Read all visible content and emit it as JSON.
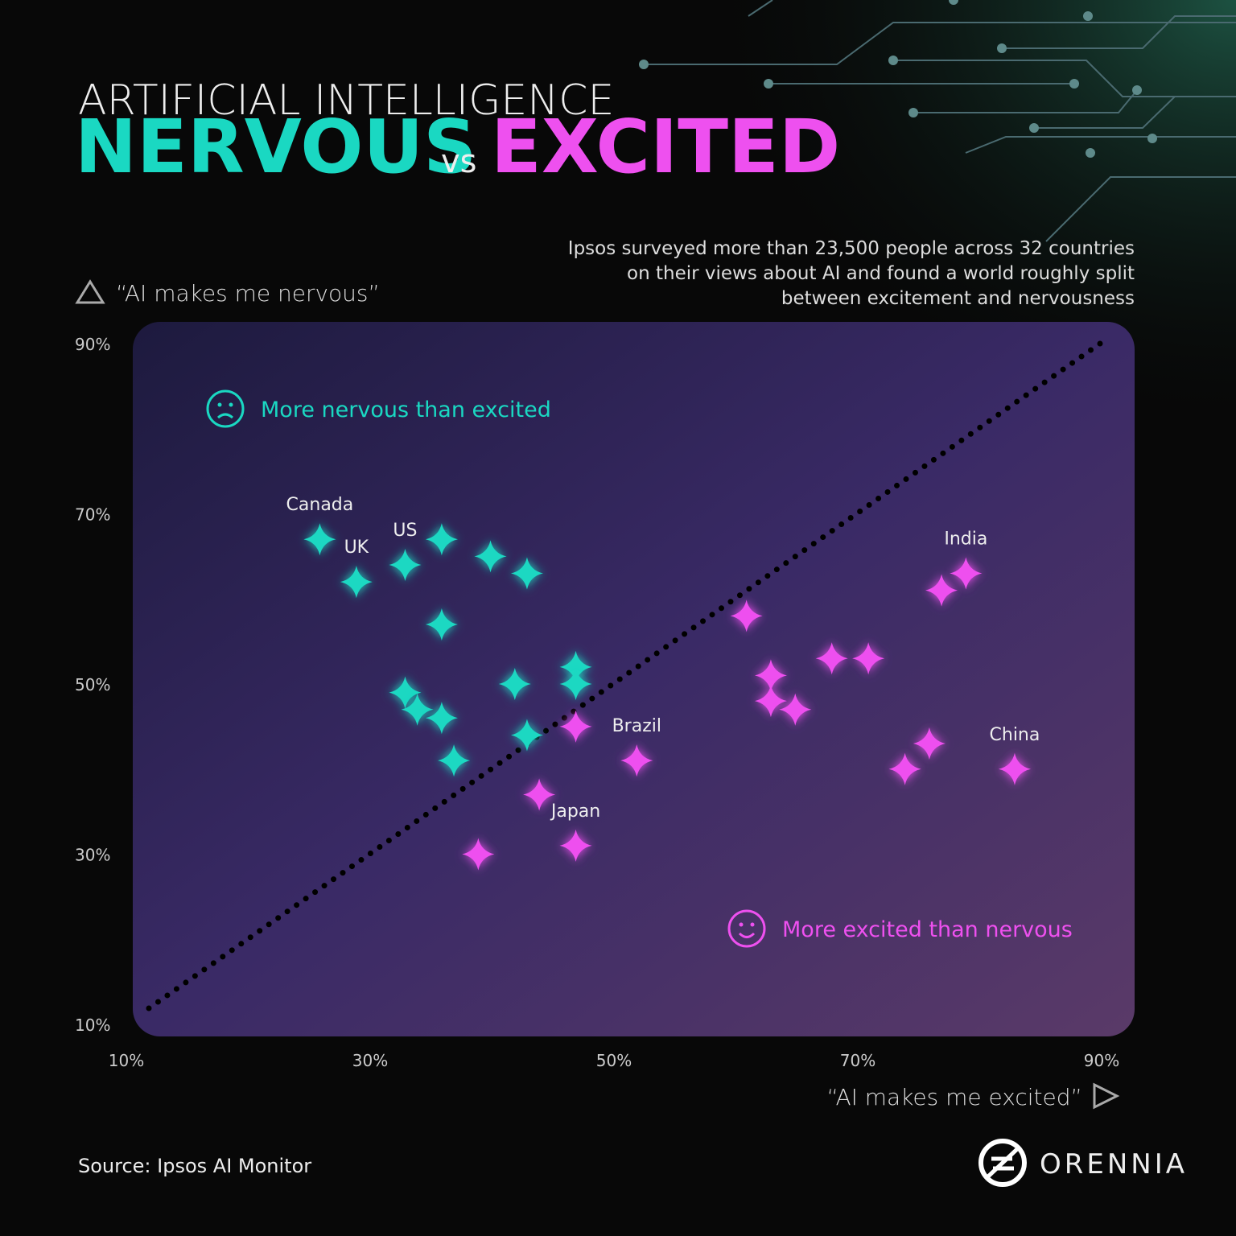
{
  "chart_data": {
    "type": "scatter",
    "title": "ARTIFICIAL INTELLIGENCE",
    "headline": [
      "NERVOUS",
      "vs",
      "EXCITED"
    ],
    "subtitle": "Ipsos surveyed more than 23,500 people across 32 countries on their views about AI and found a world roughly split between excitement and nervousness",
    "x_label": "“AI makes me excited”",
    "y_label": "“AI makes me nervous”",
    "xlim": [
      10,
      90
    ],
    "ylim": [
      10,
      90
    ],
    "xticks": [
      {
        "value": 10,
        "label": "10%"
      },
      {
        "value": 30,
        "label": "30%"
      },
      {
        "value": 50,
        "label": "50%"
      },
      {
        "value": 70,
        "label": "70%"
      },
      {
        "value": 90,
        "label": "90%"
      }
    ],
    "yticks": [
      {
        "value": 10,
        "label": "10%"
      },
      {
        "value": 30,
        "label": "30%"
      },
      {
        "value": 50,
        "label": "50%"
      },
      {
        "value": 70,
        "label": "70%"
      },
      {
        "value": 90,
        "label": "90%"
      }
    ],
    "series": [
      {
        "name": "More nervous than excited",
        "color": "#1ad8c2",
        "x": [
          26,
          29,
          33,
          36,
          40,
          43,
          36,
          33,
          34,
          36,
          37,
          42,
          43,
          47,
          47
        ],
        "values": [
          67,
          62,
          64,
          67,
          65,
          63,
          57,
          49,
          47,
          46,
          41,
          50,
          44,
          52,
          50
        ],
        "point_labels": [
          "Canada",
          "UK",
          "US",
          null,
          null,
          null,
          null,
          null,
          null,
          null,
          null,
          null,
          null,
          null,
          null
        ]
      },
      {
        "name": "More excited than nervous",
        "color": "#ee50ef",
        "x": [
          47,
          52,
          44,
          47,
          39,
          61,
          63,
          63,
          65,
          68,
          71,
          77,
          79,
          76,
          74,
          83
        ],
        "values": [
          45,
          41,
          37,
          31,
          30,
          58,
          51,
          48,
          47,
          53,
          53,
          61,
          63,
          43,
          40,
          40
        ],
        "point_labels": [
          null,
          "Brazil",
          null,
          "Japan",
          null,
          null,
          null,
          null,
          null,
          null,
          null,
          null,
          "India",
          null,
          null,
          "China"
        ]
      }
    ],
    "source": "Source: Ipsos AI Monitor",
    "brand": "ORENNIA"
  }
}
